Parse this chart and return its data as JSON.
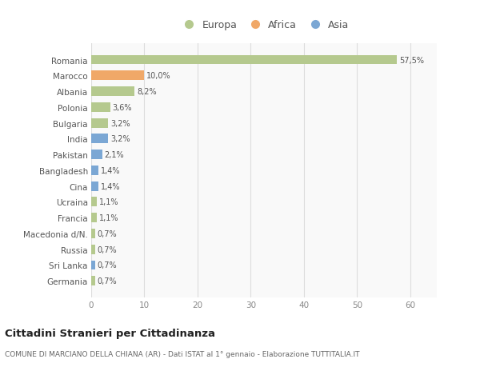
{
  "countries": [
    "Germania",
    "Sri Lanka",
    "Russia",
    "Macedonia d/N.",
    "Francia",
    "Ucraina",
    "Cina",
    "Bangladesh",
    "Pakistan",
    "India",
    "Bulgaria",
    "Polonia",
    "Albania",
    "Marocco",
    "Romania"
  ],
  "values": [
    0.7,
    0.7,
    0.7,
    0.7,
    1.1,
    1.1,
    1.4,
    1.4,
    2.1,
    3.2,
    3.2,
    3.6,
    8.2,
    10.0,
    57.5
  ],
  "labels": [
    "0,7%",
    "0,7%",
    "0,7%",
    "0,7%",
    "1,1%",
    "1,1%",
    "1,4%",
    "1,4%",
    "2,1%",
    "3,2%",
    "3,2%",
    "3,6%",
    "8,2%",
    "10,0%",
    "57,5%"
  ],
  "continents": [
    "Europa",
    "Asia",
    "Europa",
    "Europa",
    "Europa",
    "Europa",
    "Asia",
    "Asia",
    "Asia",
    "Asia",
    "Europa",
    "Europa",
    "Europa",
    "Africa",
    "Europa"
  ],
  "colors": {
    "Europa": "#b5c98e",
    "Africa": "#f0a868",
    "Asia": "#7ba7d4"
  },
  "title": "Cittadini Stranieri per Cittadinanza",
  "subtitle": "COMUNE DI MARCIANO DELLA CHIANA (AR) - Dati ISTAT al 1° gennaio - Elaborazione TUTTITALIA.IT",
  "xlabel_ticks": [
    0,
    10,
    20,
    30,
    40,
    50,
    60
  ],
  "background_color": "#ffffff",
  "plot_bg_color": "#f9f9f9",
  "xlim": [
    0,
    65
  ],
  "bar_height": 0.6
}
